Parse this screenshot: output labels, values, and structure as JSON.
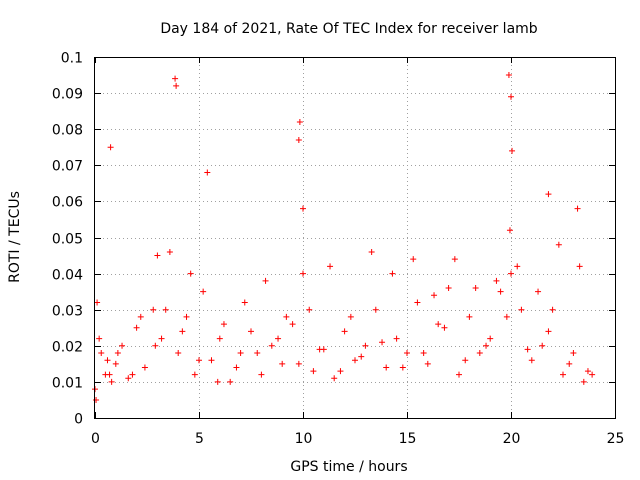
{
  "chart_data": {
    "type": "scatter",
    "title": "Day 184 of 2021, Rate Of TEC Index for receiver lamb",
    "xlabel": "GPS time / hours",
    "ylabel": "ROTI / TECUs",
    "xlim": [
      0,
      25
    ],
    "ylim": [
      0,
      0.1
    ],
    "xticks": [
      "0",
      "5",
      "10",
      "15",
      "20",
      "25"
    ],
    "yticks": [
      "0",
      "0.01",
      "0.02",
      "0.03",
      "0.04",
      "0.05",
      "0.06",
      "0.07",
      "0.08",
      "0.09",
      "0.1"
    ],
    "xtick_values": [
      0,
      5,
      10,
      15,
      20,
      25
    ],
    "ytick_values": [
      0,
      0.01,
      0.02,
      0.03,
      0.04,
      0.05,
      0.06,
      0.07,
      0.08,
      0.09,
      0.1
    ],
    "grid": true,
    "marker": "plus",
    "color": "#ff0000",
    "series": [
      {
        "x": [
          0.0,
          0.1,
          0.3,
          0.5,
          0.8,
          1.0,
          1.3,
          1.6,
          2.0,
          2.4,
          2.8,
          3.2,
          3.6,
          4.0,
          4.4,
          4.8,
          5.2,
          5.6,
          6.0,
          6.5,
          7.0,
          7.5,
          8.0,
          8.5,
          9.0,
          9.5,
          10.0,
          10.5,
          11.0,
          11.5,
          12.0,
          12.5,
          13.0,
          13.5,
          14.0,
          14.5,
          15.0,
          15.5,
          16.0,
          16.5,
          17.0,
          17.5,
          18.0,
          18.5,
          19.0,
          19.5,
          20.0,
          20.5,
          21.0,
          21.5,
          22.0,
          22.5,
          23.0,
          23.5,
          23.9,
          0.2,
          0.7,
          1.1,
          2.2,
          2.9,
          3.4,
          4.2,
          5.0,
          5.9,
          6.8,
          7.8,
          8.8,
          9.8,
          10.8,
          11.8,
          12.8,
          13.8,
          14.8,
          15.8,
          16.8,
          17.8,
          18.8,
          19.8,
          20.8,
          21.8,
          22.8,
          23.7,
          0.05,
          0.75,
          3.85,
          3.9,
          5.4,
          9.8,
          9.85,
          10.0,
          19.9,
          20.0,
          20.05,
          19.95,
          21.8,
          23.2,
          0.6,
          1.8,
          3.0,
          4.6,
          6.2,
          7.2,
          8.2,
          9.2,
          10.3,
          11.3,
          12.3,
          13.3,
          14.3,
          15.3,
          16.3,
          17.3,
          18.3,
          19.3,
          20.3,
          21.3,
          22.3,
          23.3
        ],
        "y": [
          0.008,
          0.032,
          0.018,
          0.012,
          0.01,
          0.015,
          0.02,
          0.011,
          0.025,
          0.014,
          0.03,
          0.022,
          0.046,
          0.018,
          0.028,
          0.012,
          0.035,
          0.016,
          0.022,
          0.01,
          0.018,
          0.024,
          0.012,
          0.02,
          0.015,
          0.026,
          0.04,
          0.013,
          0.019,
          0.011,
          0.024,
          0.016,
          0.02,
          0.03,
          0.014,
          0.022,
          0.018,
          0.032,
          0.015,
          0.026,
          0.036,
          0.012,
          0.028,
          0.018,
          0.022,
          0.035,
          0.04,
          0.03,
          0.016,
          0.02,
          0.03,
          0.012,
          0.018,
          0.01,
          0.012,
          0.022,
          0.012,
          0.018,
          0.028,
          0.02,
          0.03,
          0.024,
          0.016,
          0.01,
          0.014,
          0.018,
          0.022,
          0.015,
          0.019,
          0.013,
          0.017,
          0.021,
          0.014,
          0.018,
          0.025,
          0.016,
          0.02,
          0.028,
          0.019,
          0.024,
          0.015,
          0.013,
          0.005,
          0.075,
          0.094,
          0.092,
          0.068,
          0.077,
          0.082,
          0.058,
          0.095,
          0.089,
          0.074,
          0.052,
          0.062,
          0.058,
          0.016,
          0.012,
          0.045,
          0.04,
          0.026,
          0.032,
          0.038,
          0.028,
          0.03,
          0.042,
          0.028,
          0.046,
          0.04,
          0.044,
          0.034,
          0.044,
          0.036,
          0.038,
          0.042,
          0.035,
          0.048,
          0.042
        ]
      }
    ]
  }
}
